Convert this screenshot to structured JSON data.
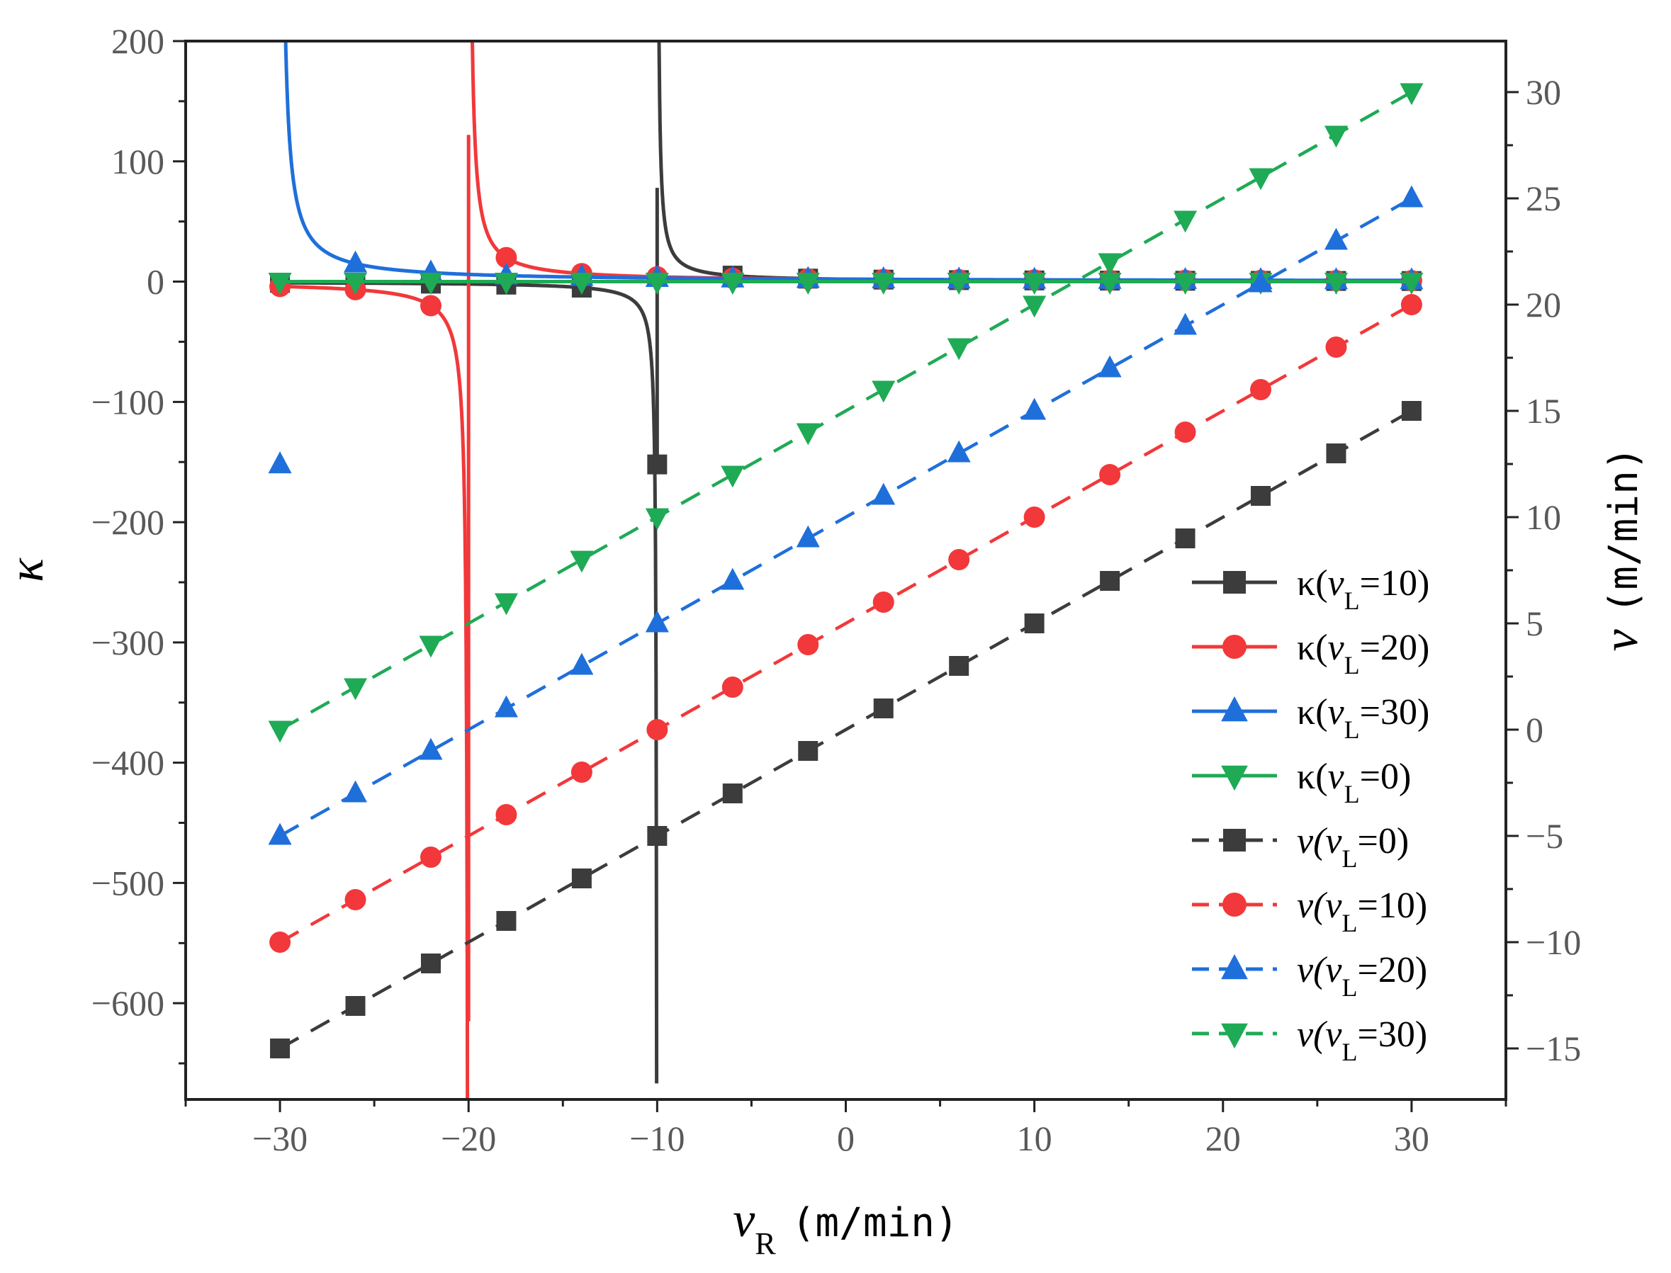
{
  "chart_data": {
    "type": "line",
    "title": "",
    "xlabel": {
      "main": "v",
      "sub": "R",
      "unit": "(m/min)"
    },
    "ylabel_left": "κ",
    "ylabel_right": {
      "main": "v",
      "unit": "(m/min)"
    },
    "xlim": [
      -35,
      35
    ],
    "ylim_left": [
      -680,
      200
    ],
    "ylim_right": [
      -17.4,
      32.4
    ],
    "x_ticks": [
      -30,
      -20,
      -10,
      0,
      10,
      20,
      30
    ],
    "x_tick_labels": [
      "−30",
      "−20",
      "−10",
      "0",
      "10",
      "20",
      "30"
    ],
    "y_left_ticks": [
      200,
      100,
      0,
      -100,
      -200,
      -300,
      -400,
      -500,
      -600
    ],
    "y_left_tick_labels": [
      "200",
      "100",
      "0",
      "−100",
      "−200",
      "−300",
      "−400",
      "−500",
      "−600"
    ],
    "y_right_ticks": [
      30,
      25,
      20,
      15,
      10,
      5,
      0,
      -5,
      -10,
      -15
    ],
    "y_right_tick_labels": [
      "30",
      "25",
      "20",
      "15",
      "10",
      "5",
      "0",
      "−5",
      "−10",
      "−15"
    ],
    "marker_x": [
      -30,
      -26,
      -22,
      -18,
      -14,
      -10,
      -6,
      -2,
      2,
      6,
      10,
      14,
      18,
      22,
      26,
      30
    ],
    "legend_position": "right-middle",
    "series": [
      {
        "name": "κ(vL=10)",
        "legend_prefix": "κ(",
        "legend_var": "v",
        "legend_sub": "L",
        "legend_value": "=10)",
        "axis": "left",
        "kind": "kappa",
        "vL": 10,
        "color": "#3c3c3c",
        "marker": "square",
        "dashed": false
      },
      {
        "name": "κ(vL=20)",
        "legend_prefix": "κ(",
        "legend_var": "v",
        "legend_sub": "L",
        "legend_value": "=20)",
        "axis": "left",
        "kind": "kappa",
        "vL": 20,
        "color": "#f2383a",
        "marker": "circle",
        "dashed": false
      },
      {
        "name": "κ(vL=30)",
        "legend_prefix": "κ(",
        "legend_var": "v",
        "legend_sub": "L",
        "legend_value": "=30)",
        "axis": "left",
        "kind": "kappa",
        "vL": 30,
        "color": "#1f6fdb",
        "marker": "triangle-up",
        "dashed": false
      },
      {
        "name": "κ(vL=0)",
        "legend_prefix": "κ(",
        "legend_var": "v",
        "legend_sub": "L",
        "legend_value": "=0)",
        "axis": "left",
        "kind": "kappa",
        "vL": 0,
        "color": "#1faa55",
        "marker": "triangle-down",
        "dashed": false
      },
      {
        "name": "v(vL=0)",
        "legend_prefix": "v(",
        "legend_var": "v",
        "legend_sub": "L",
        "legend_value": "=0)",
        "axis": "right",
        "kind": "v",
        "vL": 0,
        "color": "#3c3c3c",
        "marker": "square",
        "dashed": true
      },
      {
        "name": "v(vL=10)",
        "legend_prefix": "v(",
        "legend_var": "v",
        "legend_sub": "L",
        "legend_value": "=10)",
        "axis": "right",
        "kind": "v",
        "vL": 10,
        "color": "#f2383a",
        "marker": "circle",
        "dashed": true
      },
      {
        "name": "v(vL=20)",
        "legend_prefix": "v(",
        "legend_var": "v",
        "legend_sub": "L",
        "legend_value": "=20)",
        "axis": "right",
        "kind": "v",
        "vL": 20,
        "color": "#1f6fdb",
        "marker": "triangle-up",
        "dashed": true
      },
      {
        "name": "v(vL=30)",
        "legend_prefix": "v(",
        "legend_var": "v",
        "legend_sub": "L",
        "legend_value": "=30)",
        "axis": "right",
        "kind": "v",
        "vL": 30,
        "color": "#1faa55",
        "marker": "triangle-down",
        "dashed": true
      }
    ]
  }
}
